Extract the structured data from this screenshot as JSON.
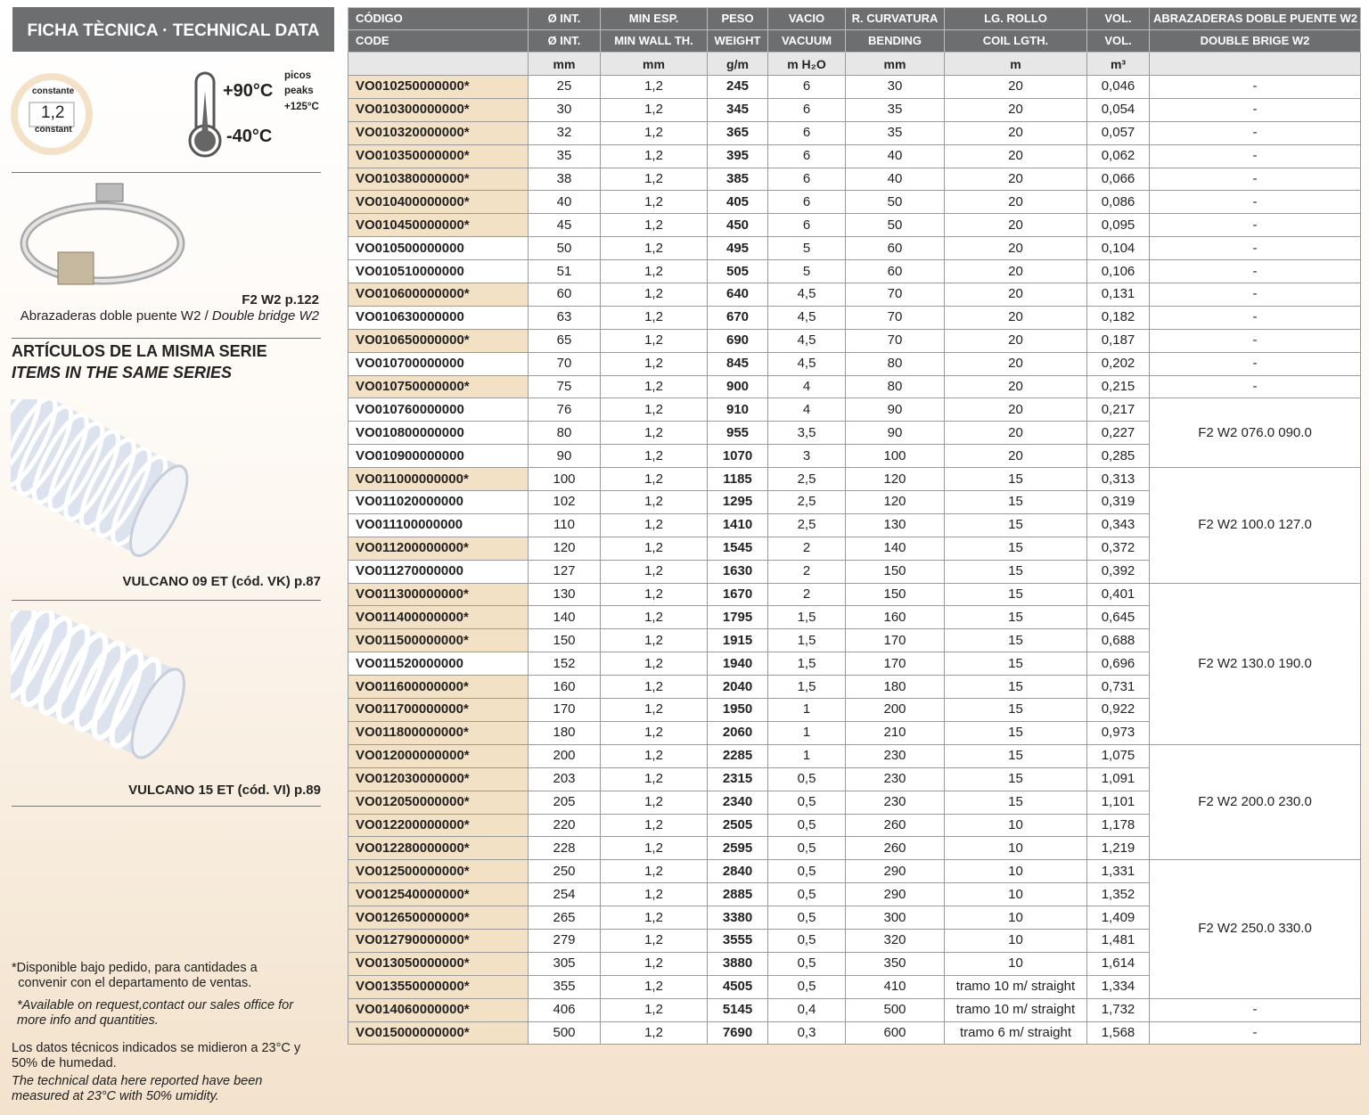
{
  "sidebar": {
    "title": "FICHA TÈCNICA · TECHNICAL DATA",
    "badge": {
      "top": "constante",
      "value": "1,2",
      "bottom": "constant"
    },
    "temperature": {
      "max": "+90°C",
      "peaks_es": "picos",
      "peaks_en": "peaks",
      "peak": "+125°C",
      "min": "-40°C"
    },
    "clamp": {
      "ref": "F2 W2 p.122",
      "caption": "Abrazaderas doble puente W2 / ",
      "caption_en": "Double bridge W2"
    },
    "series": {
      "title_es": "ARTÍCULOS DE LA MISMA SERIE",
      "title_en": "ITEMS IN THE SAME SERIES",
      "items": [
        "VULCANO 09 ET (cód. VK) p.87",
        "VULCANO 15 ET (cód. VI) p.89"
      ]
    },
    "notes": {
      "availability_es": "*Disponible bajo pedido, para cantidades a convenir con el departamento de ventas.",
      "availability_en": "*Available on request,contact our sales office for more info and quantities.",
      "conditions_es": "Los datos técnicos indicados se midieron a 23°C y 50% de humedad.",
      "conditions_en": "The technical data here reported have been measured at 23°C with 50% umidity."
    }
  },
  "table": {
    "header_es": [
      "CÓDIGO",
      "Ø INT.",
      "MIN ESP.",
      "PESO",
      "VACIO",
      "R. CURVATURA",
      "LG. ROLLO",
      "VOL.",
      "ABRAZADERAS DOBLE PUENTE W2"
    ],
    "header_en": [
      "CODE",
      "Ø INT.",
      "MIN WALL TH.",
      "WEIGHT",
      "VACUUM",
      "BENDING",
      "COIL LGTH.",
      "VOL.",
      "DOUBLE BRIGE W2"
    ],
    "units": [
      null,
      "mm",
      "mm",
      "g/m",
      "m H₂O",
      "mm",
      "m",
      "m³",
      null
    ],
    "rows": [
      [
        "VO010250000000*",
        "25",
        "1,2",
        "245",
        "6",
        "30",
        "20",
        "0,046",
        "-"
      ],
      [
        "VO010300000000*",
        "30",
        "1,2",
        "345",
        "6",
        "35",
        "20",
        "0,054",
        "-"
      ],
      [
        "VO010320000000*",
        "32",
        "1,2",
        "365",
        "6",
        "35",
        "20",
        "0,057",
        "-"
      ],
      [
        "VO010350000000*",
        "35",
        "1,2",
        "395",
        "6",
        "40",
        "20",
        "0,062",
        "-"
      ],
      [
        "VO010380000000*",
        "38",
        "1,2",
        "385",
        "6",
        "40",
        "20",
        "0,066",
        "-"
      ],
      [
        "VO010400000000*",
        "40",
        "1,2",
        "405",
        "6",
        "50",
        "20",
        "0,086",
        "-"
      ],
      [
        "VO010450000000*",
        "45",
        "1,2",
        "450",
        "6",
        "50",
        "20",
        "0,095",
        "-"
      ],
      [
        "VO010500000000",
        "50",
        "1,2",
        "495",
        "5",
        "60",
        "20",
        "0,104",
        "-"
      ],
      [
        "VO010510000000",
        "51",
        "1,2",
        "505",
        "5",
        "60",
        "20",
        "0,106",
        "-"
      ],
      [
        "VO010600000000*",
        "60",
        "1,2",
        "640",
        "4,5",
        "70",
        "20",
        "0,131",
        "-"
      ],
      [
        "VO010630000000",
        "63",
        "1,2",
        "670",
        "4,5",
        "70",
        "20",
        "0,182",
        "-"
      ],
      [
        "VO010650000000*",
        "65",
        "1,2",
        "690",
        "4,5",
        "70",
        "20",
        "0,187",
        "-"
      ],
      [
        "VO010700000000",
        "70",
        "1,2",
        "845",
        "4,5",
        "80",
        "20",
        "0,202",
        "-"
      ],
      [
        "VO010750000000*",
        "75",
        "1,2",
        "900",
        "4",
        "80",
        "20",
        "0,215",
        "-"
      ],
      [
        "VO010760000000",
        "76",
        "1,2",
        "910",
        "4",
        "90",
        "20",
        "0,217",
        "F2 W2 076.0 090.0"
      ],
      [
        "VO010800000000",
        "80",
        "1,2",
        "955",
        "3,5",
        "90",
        "20",
        "0,227",
        null
      ],
      [
        "VO010900000000",
        "90",
        "1,2",
        "1070",
        "3",
        "100",
        "20",
        "0,285",
        null
      ],
      [
        "VO011000000000*",
        "100",
        "1,2",
        "1185",
        "2,5",
        "120",
        "15",
        "0,313",
        "F2 W2 100.0 127.0"
      ],
      [
        "VO011020000000",
        "102",
        "1,2",
        "1295",
        "2,5",
        "120",
        "15",
        "0,319",
        null
      ],
      [
        "VO011100000000",
        "110",
        "1,2",
        "1410",
        "2,5",
        "130",
        "15",
        "0,343",
        null
      ],
      [
        "VO011200000000*",
        "120",
        "1,2",
        "1545",
        "2",
        "140",
        "15",
        "0,372",
        null
      ],
      [
        "VO011270000000",
        "127",
        "1,2",
        "1630",
        "2",
        "150",
        "15",
        "0,392",
        null
      ],
      [
        "VO011300000000*",
        "130",
        "1,2",
        "1670",
        "2",
        "150",
        "15",
        "0,401",
        "F2 W2 130.0 190.0"
      ],
      [
        "VO011400000000*",
        "140",
        "1,2",
        "1795",
        "1,5",
        "160",
        "15",
        "0,645",
        null
      ],
      [
        "VO011500000000*",
        "150",
        "1,2",
        "1915",
        "1,5",
        "170",
        "15",
        "0,688",
        null
      ],
      [
        "VO011520000000",
        "152",
        "1,2",
        "1940",
        "1,5",
        "170",
        "15",
        "0,696",
        null
      ],
      [
        "VO011600000000*",
        "160",
        "1,2",
        "2040",
        "1,5",
        "180",
        "15",
        "0,731",
        null
      ],
      [
        "VO011700000000*",
        "170",
        "1,2",
        "1950",
        "1",
        "200",
        "15",
        "0,922",
        null
      ],
      [
        "VO011800000000*",
        "180",
        "1,2",
        "2060",
        "1",
        "210",
        "15",
        "0,973",
        null
      ],
      [
        "VO012000000000*",
        "200",
        "1,2",
        "2285",
        "1",
        "230",
        "15",
        "1,075",
        "F2 W2 200.0 230.0"
      ],
      [
        "VO012030000000*",
        "203",
        "1,2",
        "2315",
        "0,5",
        "230",
        "15",
        "1,091",
        null
      ],
      [
        "VO012050000000*",
        "205",
        "1,2",
        "2340",
        "0,5",
        "230",
        "15",
        "1,101",
        null
      ],
      [
        "VO012200000000*",
        "220",
        "1,2",
        "2505",
        "0,5",
        "260",
        "10",
        "1,178",
        null
      ],
      [
        "VO012280000000*",
        "228",
        "1,2",
        "2595",
        "0,5",
        "260",
        "10",
        "1,219",
        null
      ],
      [
        "VO012500000000*",
        "250",
        "1,2",
        "2840",
        "0,5",
        "290",
        "10",
        "1,331",
        "F2 W2 250.0 330.0"
      ],
      [
        "VO012540000000*",
        "254",
        "1,2",
        "2885",
        "0,5",
        "290",
        "10",
        "1,352",
        null
      ],
      [
        "VO012650000000*",
        "265",
        "1,2",
        "3380",
        "0,5",
        "300",
        "10",
        "1,409",
        null
      ],
      [
        "VO012790000000*",
        "279",
        "1,2",
        "3555",
        "0,5",
        "320",
        "10",
        "1,481",
        null
      ],
      [
        "VO013050000000*",
        "305",
        "1,2",
        "3880",
        "0,5",
        "350",
        "10",
        "1,614",
        null
      ],
      [
        "VO013550000000*",
        "355",
        "1,2",
        "4505",
        "0,5",
        "410",
        "tramo 10 m/ straight",
        "1,334",
        null
      ],
      [
        "VO014060000000*",
        "406",
        "1,2",
        "5145",
        "0,4",
        "500",
        "tramo 10 m/ straight",
        "1,732",
        "-"
      ],
      [
        "VO015000000000*",
        "500",
        "1,2",
        "7690",
        "0,3",
        "600",
        "tramo 6 m/ straight",
        "1,568",
        "-"
      ]
    ]
  }
}
